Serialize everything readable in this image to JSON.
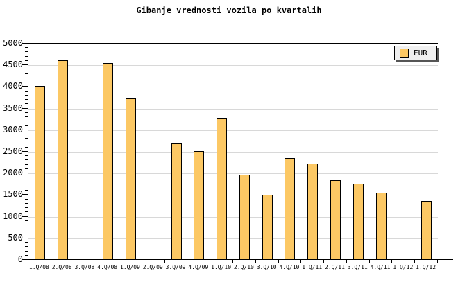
{
  "chart_data": {
    "type": "bar",
    "title": "Gibanje vrednosti vozila po kvartalih",
    "categories": [
      "1.Q/08",
      "2.Q/08",
      "3.Q/08",
      "4.Q/08",
      "1.Q/09",
      "2.Q/09",
      "3.Q/09",
      "4.Q/09",
      "1.Q/10",
      "2.Q/10",
      "3.Q/10",
      "4.Q/10",
      "1.Q/11",
      "2.Q/11",
      "3.Q/11",
      "4.Q/11",
      "1.Q/12",
      "1.Q/12"
    ],
    "series": [
      {
        "name": "EUR",
        "values": [
          4025,
          4610,
          null,
          4550,
          3740,
          null,
          2690,
          2510,
          3290,
          1970,
          1510,
          2350,
          2230,
          1840,
          1770,
          1560,
          null,
          1370
        ]
      }
    ],
    "xlabel": "",
    "ylabel": "",
    "ylim": [
      0,
      5000
    ],
    "ytick_major": 500,
    "ytick_minor": 100,
    "grid": "horizontal-major",
    "legend": {
      "position": "top-right",
      "entries": [
        "EUR"
      ]
    },
    "colors": {
      "bar_fill": "#FCC864",
      "bar_border": "#000000",
      "grid": "#D8D8D8",
      "axis": "#000000",
      "legend_bg": "#EFEFEF",
      "legend_shadow": "#555555",
      "background": "#FFFFFF"
    }
  }
}
